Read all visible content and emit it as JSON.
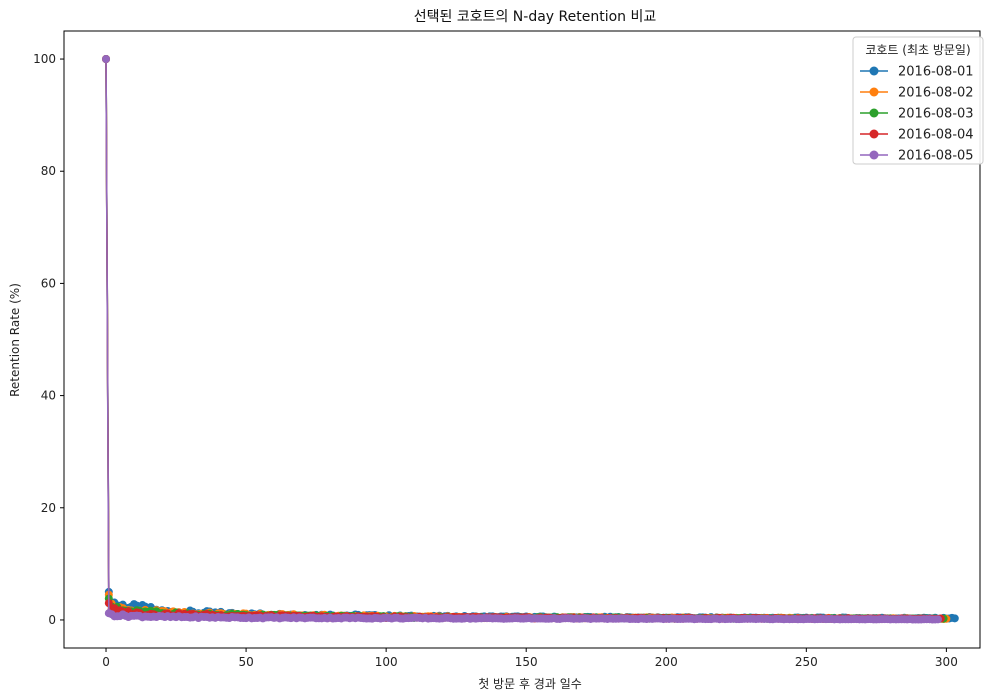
{
  "chart_data": {
    "type": "line",
    "title": "선택된 코호트의 N-day Retention 비교",
    "xlabel": "첫 방문 후 경과 일수",
    "ylabel": "Retention Rate (%)",
    "xlim": [
      -15,
      312
    ],
    "ylim": [
      -5,
      105
    ],
    "xticks": [
      0,
      50,
      100,
      150,
      200,
      250,
      300
    ],
    "yticks": [
      0,
      20,
      40,
      60,
      80,
      100
    ],
    "grid": false,
    "legend": {
      "title": "코호트 (최초 방문일)",
      "position": "top-right"
    },
    "series": [
      {
        "name": "2016-08-01",
        "color": "#1f77b4",
        "max_day": 303,
        "points": [
          [
            0,
            100
          ],
          [
            1,
            5.0
          ],
          [
            2,
            3.8
          ],
          [
            3,
            3.0
          ],
          [
            5,
            2.6
          ],
          [
            8,
            2.4
          ],
          [
            10,
            2.2
          ],
          [
            14,
            2.0
          ],
          [
            20,
            1.5
          ],
          [
            30,
            1.3
          ],
          [
            37,
            1.2
          ],
          [
            50,
            1.0
          ],
          [
            65,
            0.9
          ],
          [
            85,
            0.8
          ],
          [
            110,
            0.6
          ],
          [
            150,
            0.5
          ],
          [
            200,
            0.4
          ],
          [
            250,
            0.35
          ],
          [
            303,
            0.3
          ]
        ]
      },
      {
        "name": "2016-08-02",
        "color": "#ff7f0e",
        "max_day": 300,
        "points": [
          [
            0,
            100
          ],
          [
            1,
            4.5
          ],
          [
            2,
            2.8
          ],
          [
            3,
            2.3
          ],
          [
            5,
            1.9
          ],
          [
            10,
            1.6
          ],
          [
            20,
            1.3
          ],
          [
            30,
            1.1
          ],
          [
            50,
            0.9
          ],
          [
            80,
            0.7
          ],
          [
            120,
            0.5
          ],
          [
            160,
            0.4
          ],
          [
            200,
            0.35
          ],
          [
            250,
            0.3
          ],
          [
            300,
            0.2
          ]
        ]
      },
      {
        "name": "2016-08-03",
        "color": "#2ca02c",
        "max_day": 299,
        "points": [
          [
            0,
            100
          ],
          [
            1,
            3.8
          ],
          [
            2,
            2.6
          ],
          [
            3,
            2.0
          ],
          [
            5,
            1.7
          ],
          [
            10,
            1.4
          ],
          [
            20,
            1.2
          ],
          [
            30,
            1.0
          ],
          [
            50,
            0.8
          ],
          [
            80,
            0.6
          ],
          [
            120,
            0.45
          ],
          [
            160,
            0.4
          ],
          [
            200,
            0.3
          ],
          [
            250,
            0.25
          ],
          [
            299,
            0.2
          ]
        ]
      },
      {
        "name": "2016-08-04",
        "color": "#d62728",
        "max_day": 298,
        "points": [
          [
            0,
            100
          ],
          [
            1,
            3.0
          ],
          [
            2,
            2.2
          ],
          [
            3,
            1.7
          ],
          [
            5,
            1.4
          ],
          [
            10,
            1.2
          ],
          [
            20,
            1.0
          ],
          [
            30,
            0.9
          ],
          [
            50,
            0.7
          ],
          [
            80,
            0.55
          ],
          [
            120,
            0.45
          ],
          [
            160,
            0.35
          ],
          [
            200,
            0.3
          ],
          [
            250,
            0.25
          ],
          [
            298,
            0.2
          ]
        ]
      },
      {
        "name": "2016-08-05",
        "color": "#9467bd",
        "max_day": 297,
        "points": [
          [
            0,
            100
          ],
          [
            1,
            1.2
          ],
          [
            2,
            1.0
          ],
          [
            3,
            0.9
          ],
          [
            5,
            0.8
          ],
          [
            10,
            0.7
          ],
          [
            20,
            0.55
          ],
          [
            30,
            0.5
          ],
          [
            50,
            0.4
          ],
          [
            80,
            0.35
          ],
          [
            120,
            0.3
          ],
          [
            160,
            0.25
          ],
          [
            200,
            0.2
          ],
          [
            250,
            0.15
          ],
          [
            297,
            0.1
          ]
        ]
      }
    ]
  }
}
